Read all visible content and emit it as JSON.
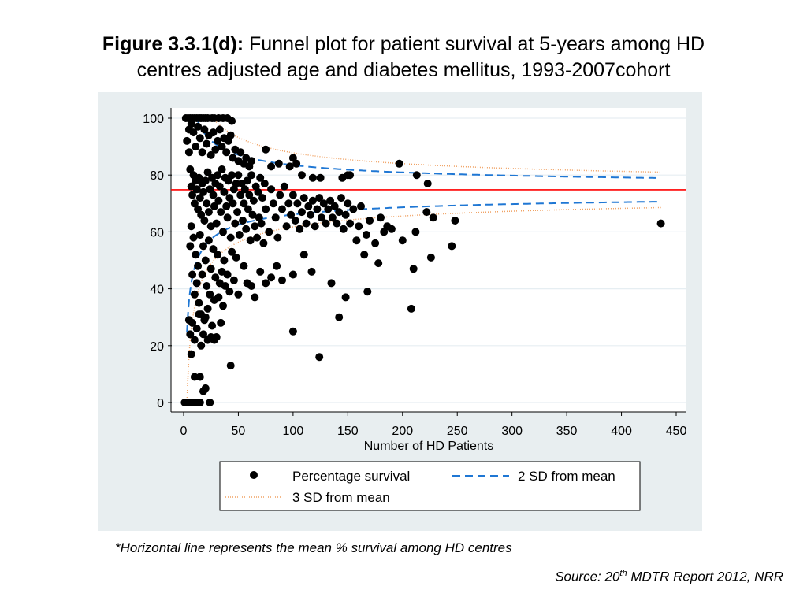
{
  "title": {
    "bold": "Figure 3.3.1(d):",
    "line1": " Funnel plot for patient survival at 5-years among HD",
    "line2": "centres adjusted age and diabetes mellitus, 1993-2007cohort"
  },
  "note": "*Horizontal line represents the mean % survival among HD centres",
  "source": {
    "prefix": "Source: 20",
    "sup": "th",
    "suffix": " MDTR Report 2012, NRR"
  },
  "chart_data": {
    "type": "scatter",
    "xlabel": "Number of HD Patients",
    "ylabel": "",
    "xlim": [
      0,
      450
    ],
    "ylim": [
      0,
      100
    ],
    "x_ticks": [
      "0",
      "50",
      "100",
      "150",
      "200",
      "250",
      "300",
      "350",
      "400",
      "450"
    ],
    "y_ticks": [
      "0",
      "20",
      "40",
      "60",
      "80",
      "100"
    ],
    "grid": true,
    "mean": 74.8,
    "legend": {
      "position": "bottom",
      "entries": [
        "Percentage survival",
        "2 SD from mean",
        "3 SD from mean"
      ]
    },
    "colors": {
      "points": "#000000",
      "mean_line": "#ff0000",
      "sd2": "#1f77d4",
      "sd3": "#f0a060",
      "panel": "#e8eef0"
    },
    "series": [
      {
        "name": "Percentage survival",
        "kind": "points",
        "points": [
          [
            2,
            100
          ],
          [
            4,
            100
          ],
          [
            6,
            100
          ],
          [
            8,
            100
          ],
          [
            10,
            100
          ],
          [
            12,
            100
          ],
          [
            14,
            100
          ],
          [
            16,
            100
          ],
          [
            18,
            100
          ],
          [
            20,
            100
          ],
          [
            22,
            100
          ],
          [
            26,
            100
          ],
          [
            28,
            100
          ],
          [
            32,
            100
          ],
          [
            36,
            100
          ],
          [
            40,
            100
          ],
          [
            44,
            99
          ],
          [
            3,
            92
          ],
          [
            5,
            96
          ],
          [
            7,
            98
          ],
          [
            9,
            95
          ],
          [
            11,
            90
          ],
          [
            13,
            97
          ],
          [
            15,
            93
          ],
          [
            17,
            88
          ],
          [
            19,
            96
          ],
          [
            21,
            91
          ],
          [
            23,
            94
          ],
          [
            25,
            87
          ],
          [
            27,
            95
          ],
          [
            29,
            89
          ],
          [
            31,
            92
          ],
          [
            33,
            96
          ],
          [
            35,
            90
          ],
          [
            37,
            93
          ],
          [
            39,
            88
          ],
          [
            41,
            92
          ],
          [
            43,
            94
          ],
          [
            45,
            86
          ],
          [
            47,
            89
          ],
          [
            50,
            85
          ],
          [
            52,
            88
          ],
          [
            55,
            84
          ],
          [
            57,
            86
          ],
          [
            60,
            83
          ],
          [
            62,
            85
          ],
          [
            75,
            89
          ],
          [
            80,
            83
          ],
          [
            87,
            84
          ],
          [
            97,
            83
          ],
          [
            100,
            86
          ],
          [
            103,
            84
          ],
          [
            108,
            80
          ],
          [
            118,
            79
          ],
          [
            125,
            79
          ],
          [
            145,
            79
          ],
          [
            150,
            80
          ],
          [
            152,
            80
          ],
          [
            197,
            84
          ],
          [
            213,
            80
          ],
          [
            223,
            77
          ],
          [
            6,
            82
          ],
          [
            7,
            76
          ],
          [
            8,
            73
          ],
          [
            9,
            80
          ],
          [
            10,
            70
          ],
          [
            11,
            78
          ],
          [
            12,
            75
          ],
          [
            13,
            68
          ],
          [
            14,
            79
          ],
          [
            15,
            72
          ],
          [
            16,
            66
          ],
          [
            17,
            77
          ],
          [
            18,
            74
          ],
          [
            19,
            64
          ],
          [
            20,
            78
          ],
          [
            21,
            70
          ],
          [
            22,
            81
          ],
          [
            23,
            67
          ],
          [
            24,
            75
          ],
          [
            25,
            62
          ],
          [
            26,
            79
          ],
          [
            27,
            73
          ],
          [
            28,
            69
          ],
          [
            29,
            77
          ],
          [
            30,
            63
          ],
          [
            31,
            80
          ],
          [
            32,
            71
          ],
          [
            33,
            76
          ],
          [
            34,
            67
          ],
          [
            35,
            82
          ],
          [
            36,
            60
          ],
          [
            37,
            74
          ],
          [
            38,
            79
          ],
          [
            39,
            69
          ],
          [
            40,
            65
          ],
          [
            41,
            78
          ],
          [
            42,
            72
          ],
          [
            43,
            58
          ],
          [
            44,
            80
          ],
          [
            45,
            70
          ],
          [
            46,
            75
          ],
          [
            47,
            63
          ],
          [
            48,
            77
          ],
          [
            49,
            67
          ],
          [
            50,
            80
          ],
          [
            51,
            59
          ],
          [
            52,
            73
          ],
          [
            53,
            77
          ],
          [
            54,
            64
          ],
          [
            55,
            70
          ],
          [
            56,
            75
          ],
          [
            57,
            61
          ],
          [
            58,
            78
          ],
          [
            59,
            68
          ],
          [
            60,
            73
          ],
          [
            61,
            57
          ],
          [
            62,
            80
          ],
          [
            63,
            66
          ],
          [
            64,
            71
          ],
          [
            65,
            62
          ],
          [
            66,
            76
          ],
          [
            67,
            58
          ],
          [
            68,
            74
          ],
          [
            69,
            65
          ],
          [
            70,
            79
          ],
          [
            71,
            63
          ],
          [
            72,
            72
          ],
          [
            73,
            56
          ],
          [
            74,
            77
          ],
          [
            75,
            68
          ],
          [
            78,
            60
          ],
          [
            80,
            75
          ],
          [
            82,
            70
          ],
          [
            84,
            65
          ],
          [
            86,
            58
          ],
          [
            88,
            73
          ],
          [
            90,
            68
          ],
          [
            92,
            76
          ],
          [
            94,
            62
          ],
          [
            96,
            70
          ],
          [
            98,
            66
          ],
          [
            100,
            73
          ],
          [
            102,
            64
          ],
          [
            104,
            70
          ],
          [
            106,
            61
          ],
          [
            108,
            67
          ],
          [
            110,
            72
          ],
          [
            112,
            63
          ],
          [
            114,
            69
          ],
          [
            116,
            66
          ],
          [
            118,
            71
          ],
          [
            120,
            62
          ],
          [
            122,
            68
          ],
          [
            124,
            72
          ],
          [
            126,
            65
          ],
          [
            128,
            70
          ],
          [
            130,
            63
          ],
          [
            132,
            68
          ],
          [
            134,
            71
          ],
          [
            136,
            65
          ],
          [
            138,
            69
          ],
          [
            140,
            63
          ],
          [
            142,
            67
          ],
          [
            144,
            72
          ],
          [
            146,
            61
          ],
          [
            148,
            66
          ],
          [
            150,
            70
          ],
          [
            152,
            63
          ],
          [
            155,
            68
          ],
          [
            158,
            57
          ],
          [
            160,
            62
          ],
          [
            162,
            69
          ],
          [
            165,
            52
          ],
          [
            167,
            59
          ],
          [
            170,
            64
          ],
          [
            175,
            56
          ],
          [
            178,
            49
          ],
          [
            180,
            65
          ],
          [
            183,
            60
          ],
          [
            186,
            62
          ],
          [
            190,
            61
          ],
          [
            200,
            57
          ],
          [
            208,
            33
          ],
          [
            210,
            47
          ],
          [
            212,
            60
          ],
          [
            222,
            67
          ],
          [
            226,
            51
          ],
          [
            228,
            65
          ],
          [
            245,
            55
          ],
          [
            248,
            64
          ],
          [
            436,
            63
          ],
          [
            5,
            88
          ],
          [
            6,
            55
          ],
          [
            7,
            62
          ],
          [
            8,
            45
          ],
          [
            9,
            58
          ],
          [
            10,
            38
          ],
          [
            11,
            52
          ],
          [
            12,
            42
          ],
          [
            13,
            48
          ],
          [
            14,
            35
          ],
          [
            15,
            59
          ],
          [
            16,
            31
          ],
          [
            17,
            45
          ],
          [
            18,
            55
          ],
          [
            19,
            29
          ],
          [
            20,
            50
          ],
          [
            21,
            41
          ],
          [
            22,
            33
          ],
          [
            23,
            57
          ],
          [
            24,
            38
          ],
          [
            25,
            47
          ],
          [
            26,
            27
          ],
          [
            27,
            54
          ],
          [
            28,
            36
          ],
          [
            29,
            44
          ],
          [
            30,
            23
          ],
          [
            31,
            52
          ],
          [
            32,
            37
          ],
          [
            33,
            42
          ],
          [
            34,
            28
          ],
          [
            35,
            46
          ],
          [
            36,
            34
          ],
          [
            37,
            50
          ],
          [
            38,
            41
          ],
          [
            40,
            45
          ],
          [
            42,
            39
          ],
          [
            44,
            53
          ],
          [
            46,
            43
          ],
          [
            48,
            51
          ],
          [
            50,
            38
          ],
          [
            55,
            48
          ],
          [
            58,
            42
          ],
          [
            62,
            41
          ],
          [
            65,
            37
          ],
          [
            70,
            46
          ],
          [
            75,
            42
          ],
          [
            80,
            44
          ],
          [
            85,
            48
          ],
          [
            90,
            43
          ],
          [
            100,
            45
          ],
          [
            110,
            52
          ],
          [
            117,
            46
          ],
          [
            135,
            42
          ],
          [
            148,
            37
          ],
          [
            142,
            30
          ],
          [
            100,
            25
          ],
          [
            124,
            16
          ],
          [
            168,
            39
          ],
          [
            5,
            29
          ],
          [
            6,
            24
          ],
          [
            7,
            17
          ],
          [
            8,
            28
          ],
          [
            10,
            22
          ],
          [
            12,
            26
          ],
          [
            14,
            31
          ],
          [
            16,
            20
          ],
          [
            18,
            24
          ],
          [
            20,
            30
          ],
          [
            22,
            22
          ],
          [
            25,
            23
          ],
          [
            28,
            22
          ],
          [
            43,
            13
          ],
          [
            10,
            9
          ],
          [
            15,
            9
          ],
          [
            18,
            4
          ],
          [
            20,
            5
          ],
          [
            1,
            0
          ],
          [
            3,
            0
          ],
          [
            5,
            0
          ],
          [
            7,
            0
          ],
          [
            9,
            0
          ],
          [
            11,
            0
          ],
          [
            13,
            0
          ],
          [
            15,
            0
          ],
          [
            24,
            0
          ]
        ]
      }
    ]
  }
}
